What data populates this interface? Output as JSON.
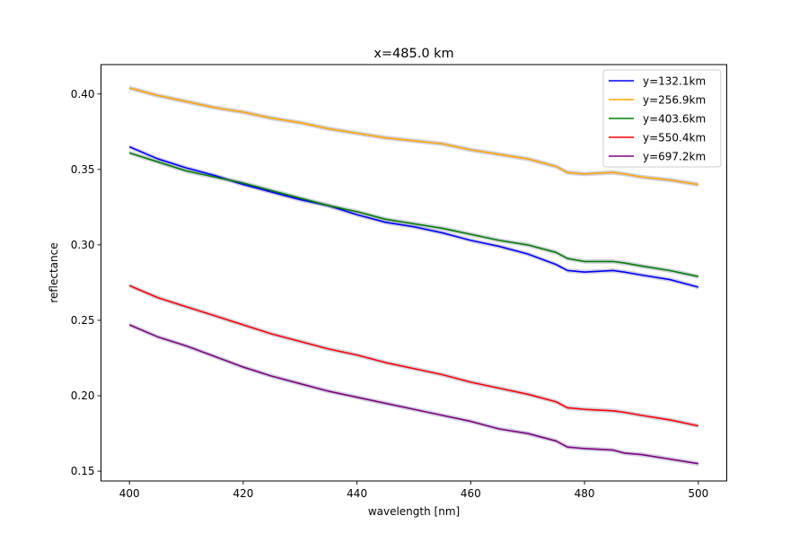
{
  "chart_data": {
    "type": "line",
    "title": "x=485.0 km",
    "xlabel": "wavelength [nm]",
    "ylabel": "reflectance",
    "xlim": [
      395,
      505
    ],
    "ylim": [
      0.1435,
      0.4195
    ],
    "xticks": [
      400,
      420,
      440,
      460,
      480,
      500
    ],
    "xtick_labels": [
      "400",
      "420",
      "440",
      "460",
      "480",
      "500"
    ],
    "yticks": [
      0.15,
      0.2,
      0.25,
      0.3,
      0.35,
      0.4
    ],
    "ytick_labels": [
      "0.15",
      "0.20",
      "0.25",
      "0.30",
      "0.35",
      "0.40"
    ],
    "grid": false,
    "legend_position": "top-right",
    "shaded_uncertainty_band": true,
    "band_half_width": 0.0015,
    "x": [
      400,
      405,
      410,
      415,
      420,
      425,
      430,
      435,
      440,
      445,
      450,
      455,
      460,
      465,
      470,
      475,
      477,
      480,
      485,
      487,
      490,
      495,
      500
    ],
    "series": [
      {
        "name": "y=132.1km",
        "color": "#0000ff",
        "values": [
          0.365,
          0.357,
          0.351,
          0.346,
          0.34,
          0.335,
          0.33,
          0.326,
          0.32,
          0.315,
          0.312,
          0.308,
          0.303,
          0.299,
          0.294,
          0.287,
          0.283,
          0.282,
          0.283,
          0.282,
          0.28,
          0.277,
          0.272
        ]
      },
      {
        "name": "y=256.9km",
        "color": "#ffa500",
        "values": [
          0.404,
          0.399,
          0.395,
          0.391,
          0.388,
          0.384,
          0.381,
          0.377,
          0.374,
          0.371,
          0.369,
          0.367,
          0.363,
          0.36,
          0.357,
          0.352,
          0.348,
          0.347,
          0.348,
          0.347,
          0.345,
          0.343,
          0.34
        ]
      },
      {
        "name": "y=403.6km",
        "color": "#008000",
        "values": [
          0.361,
          0.355,
          0.349,
          0.345,
          0.341,
          0.336,
          0.331,
          0.326,
          0.322,
          0.317,
          0.314,
          0.311,
          0.307,
          0.303,
          0.3,
          0.295,
          0.291,
          0.289,
          0.289,
          0.288,
          0.286,
          0.283,
          0.279
        ]
      },
      {
        "name": "y=550.4km",
        "color": "#ff0000",
        "values": [
          0.273,
          0.265,
          0.259,
          0.253,
          0.247,
          0.241,
          0.236,
          0.231,
          0.227,
          0.222,
          0.218,
          0.214,
          0.209,
          0.205,
          0.201,
          0.196,
          0.192,
          0.191,
          0.19,
          0.189,
          0.187,
          0.184,
          0.18
        ]
      },
      {
        "name": "y=697.2km",
        "color": "#800080",
        "values": [
          0.247,
          0.239,
          0.233,
          0.226,
          0.219,
          0.213,
          0.208,
          0.203,
          0.199,
          0.195,
          0.191,
          0.187,
          0.183,
          0.178,
          0.175,
          0.17,
          0.166,
          0.165,
          0.164,
          0.162,
          0.161,
          0.158,
          0.155
        ]
      }
    ]
  }
}
